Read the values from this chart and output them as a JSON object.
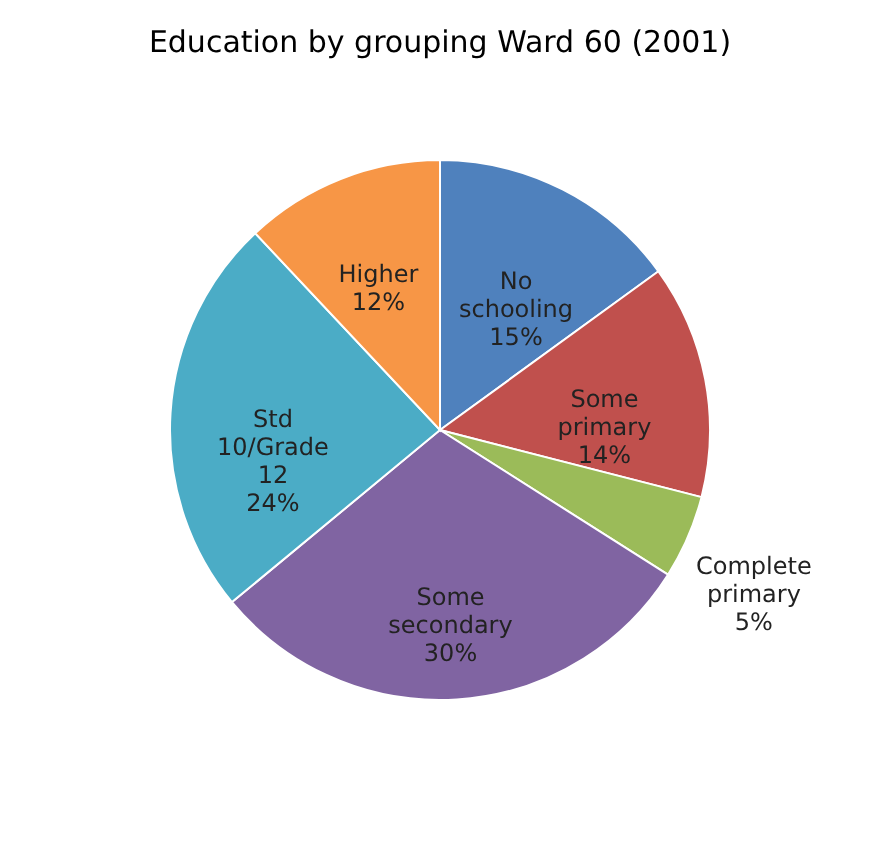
{
  "chart_data": {
    "type": "pie",
    "title": "Education by grouping Ward 60 (2001)",
    "categories": [
      "No schooling",
      "Some primary",
      "Complete primary",
      "Some secondary",
      "Std 10/Grade 12",
      "Higher"
    ],
    "values": [
      15,
      14,
      5,
      30,
      24,
      12
    ],
    "value_labels": [
      "15%",
      "14%",
      "5%",
      "30%",
      "24%",
      "12%"
    ],
    "colors": [
      "#4f81bd",
      "#c0504d",
      "#9bbb59",
      "#8064a2",
      "#4bacc6",
      "#f79646"
    ],
    "legend": false
  }
}
